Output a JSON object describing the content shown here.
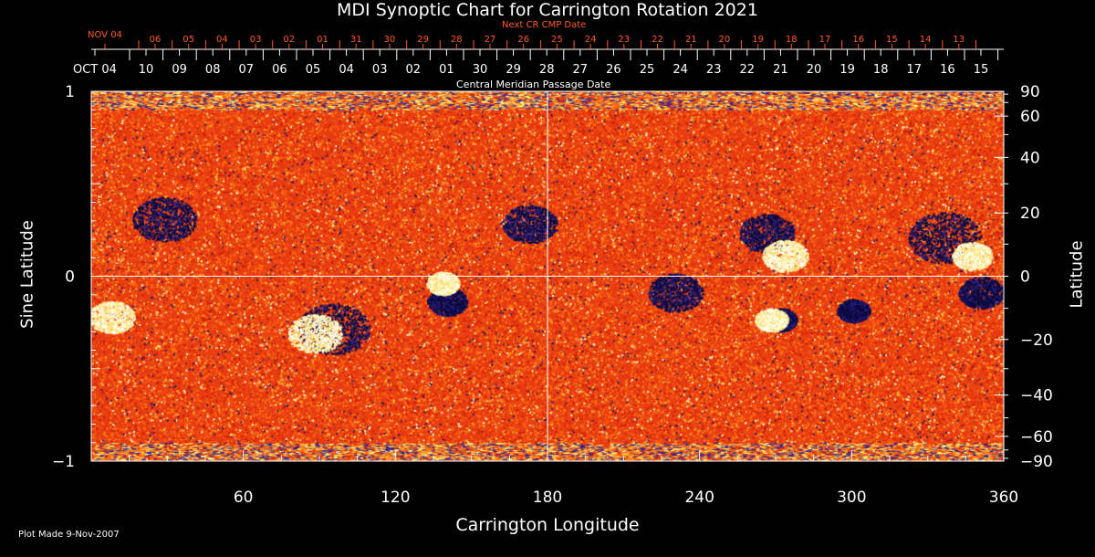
{
  "chart_data": {
    "type": "heatmap",
    "title": "MDI Synoptic Chart for Carrington Rotation 2021",
    "xlabel": "Carrington Longitude",
    "ylabel": "Sine Latitude",
    "y2label": "Latitude",
    "top_label": "Central Meridian Passage Date",
    "top2_label": "Next CR CMP Date",
    "xlim": [
      0,
      360
    ],
    "ylim": [
      -1,
      1
    ],
    "xticks": [
      60,
      120,
      180,
      240,
      300,
      360
    ],
    "yticks": [
      {
        "v": 1,
        "label": "1"
      },
      {
        "v": 0,
        "label": "0"
      },
      {
        "v": -1,
        "label": "−1"
      }
    ],
    "lat_ticks": [
      90,
      60,
      40,
      20,
      0,
      -20,
      -40,
      -60,
      -90
    ],
    "cmp_dates": [
      "OCT 04",
      "10",
      "09",
      "08",
      "07",
      "06",
      "05",
      "04",
      "03",
      "02",
      "01",
      "30",
      "29",
      "28",
      "27",
      "26",
      "25",
      "24",
      "23",
      "22",
      "21",
      "20",
      "19",
      "18",
      "17",
      "16",
      "15"
    ],
    "next_cmp_dates": [
      "NOV 04",
      "06",
      "05",
      "04",
      "03",
      "02",
      "01",
      "31",
      "30",
      "29",
      "28",
      "27",
      "26",
      "25",
      "24",
      "23",
      "22",
      "21",
      "20",
      "19",
      "18",
      "17",
      "16",
      "15",
      "14",
      "13"
    ],
    "colors": {
      "background": "#e83a10",
      "positive": "#ffffe0",
      "negative": "#101050",
      "next_axis": "#ff5a1e"
    }
  },
  "footer": "Plot Made  9-Nov-2007"
}
